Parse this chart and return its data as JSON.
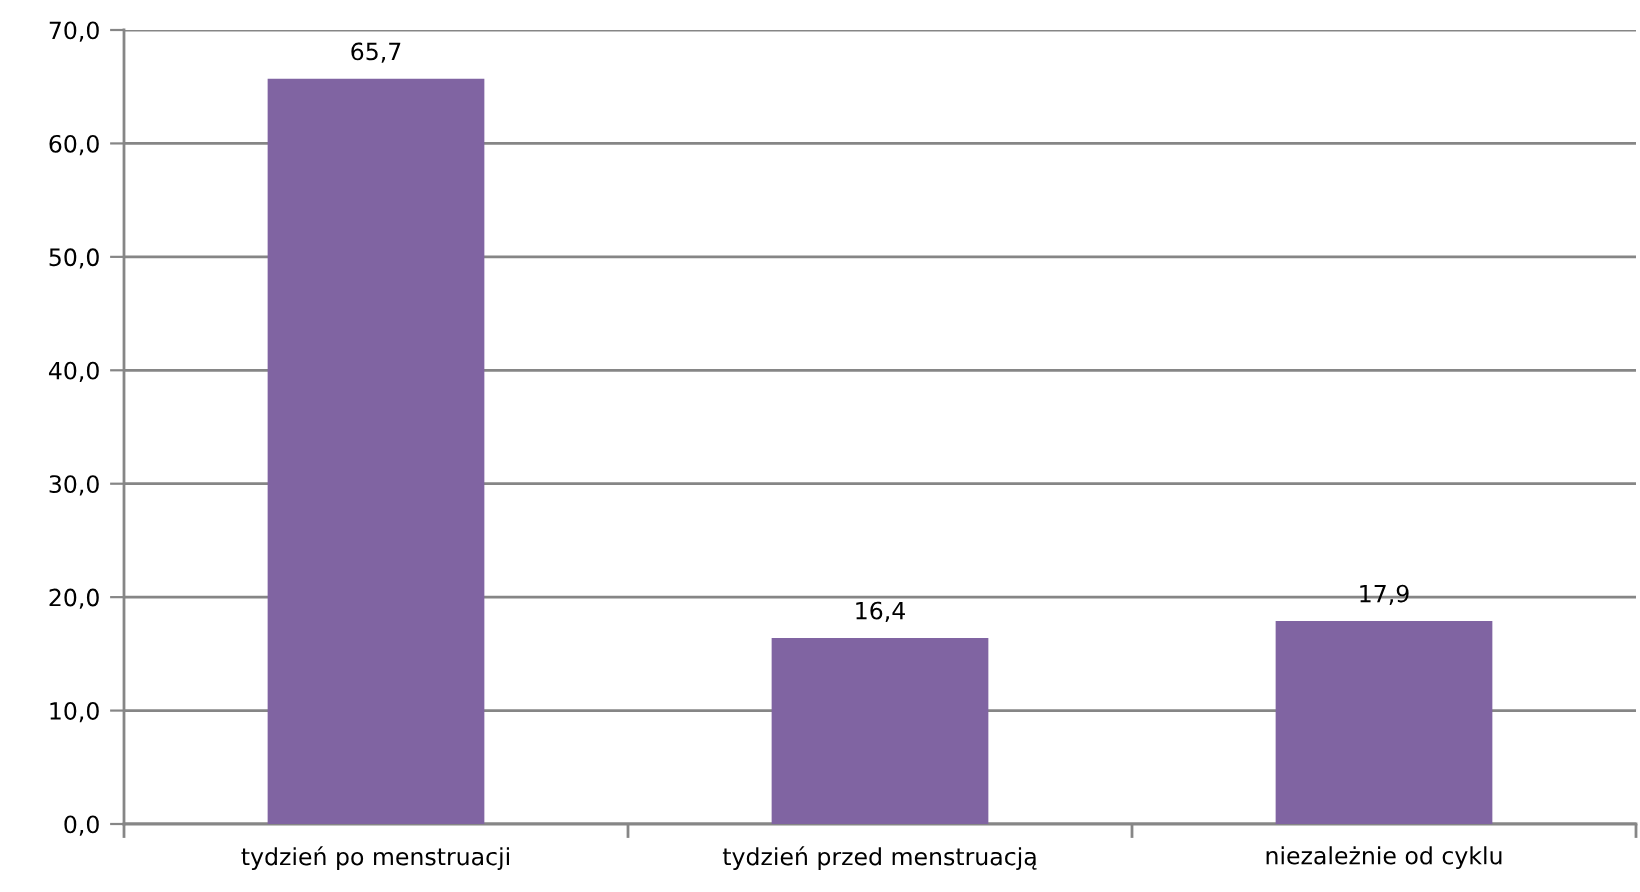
{
  "chart_data": {
    "type": "bar",
    "categories": [
      "tydzień po menstruacji",
      "tydzień przed menstruacją",
      "niezależnie od cyklu"
    ],
    "values": [
      65.7,
      16.4,
      17.9
    ],
    "color": "#8064a2",
    "value_labels": [
      "65,7",
      "16,4",
      "17,9"
    ],
    "ylim": [
      0,
      70
    ],
    "yticks": [
      {
        "value": 0,
        "label": "0,0"
      },
      {
        "value": 10,
        "label": "10,0"
      },
      {
        "value": 20,
        "label": "20,0"
      },
      {
        "value": 30,
        "label": "30,0"
      },
      {
        "value": 40,
        "label": "40,0"
      },
      {
        "value": 50,
        "label": "50,0"
      },
      {
        "value": 60,
        "label": "60,0"
      },
      {
        "value": 70,
        "label": "70,0"
      }
    ],
    "grid": "y",
    "legend": false
  }
}
